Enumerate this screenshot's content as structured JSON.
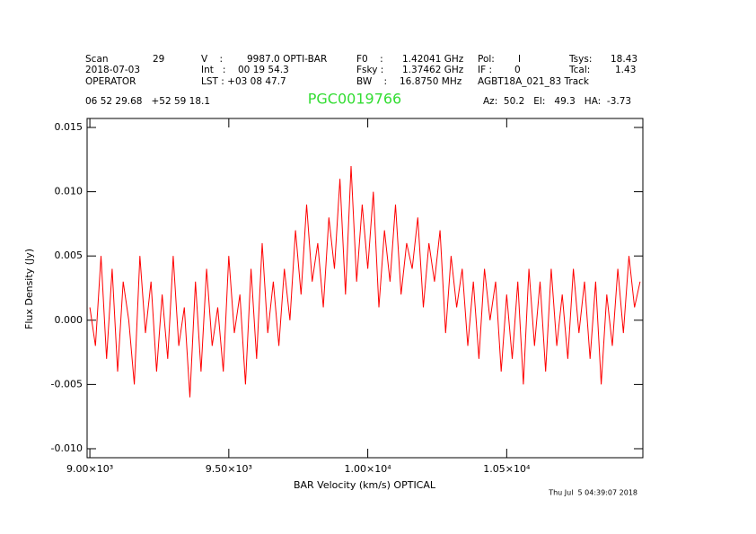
{
  "chart_data": {
    "type": "line",
    "title": "PGC0019766",
    "header": [
      "Scan",
      "29",
      "V    :",
      "9987.0 OPTI-BAR",
      "F0    :",
      "1.42041 GHz",
      "Pol:",
      "I",
      "Tsys:",
      "18.43",
      "2018-07-03",
      "Int   :",
      "00 19 54.3",
      "Fsky :",
      "1.37462 GHz",
      "IF :",
      "0",
      "Tcal:",
      "1.43",
      "OPERATOR",
      "LST : +03 08 47.7",
      "BW    :",
      "16.8750 MHz",
      "AGBT18A_021_83 Track",
      "06 52 29.68   +52 59 18.1",
      "Az:  50.2   El:   49.3   HA:  -3.73"
    ],
    "footer": "Thu Jul  5 04:39:07 2018",
    "x_label": "BAR Velocity (km/s) OPTICAL",
    "y_label": "Flux Density (Jy)",
    "xlim": [
      8990,
      10990
    ],
    "ylim": [
      -0.0107,
      0.0157
    ],
    "xticks": [
      {
        "value": 9000,
        "label": "9.00×10³"
      },
      {
        "value": 9500,
        "label": "9.50×10³"
      },
      {
        "value": 10000,
        "label": "1.00×10⁴"
      },
      {
        "value": 10500,
        "label": "1.05×10⁴"
      }
    ],
    "yticks": [
      {
        "value": 0.015,
        "label": "0.015"
      },
      {
        "value": 0.01,
        "label": "0.010"
      },
      {
        "value": 0.005,
        "label": "0.005"
      },
      {
        "value": 0,
        "label": "0.000"
      },
      {
        "value": -0.005,
        "label": "-0.005"
      },
      {
        "value": -0.01,
        "label": "-0.010"
      }
    ],
    "x": [
      9000,
      9020,
      9040,
      9060,
      9080,
      9100,
      9120,
      9140,
      9160,
      9180,
      9200,
      9220,
      9240,
      9260,
      9280,
      9300,
      9320,
      9340,
      9360,
      9380,
      9400,
      9420,
      9440,
      9460,
      9480,
      9500,
      9520,
      9540,
      9560,
      9580,
      9600,
      9620,
      9640,
      9660,
      9680,
      9700,
      9720,
      9740,
      9760,
      9780,
      9800,
      9820,
      9840,
      9860,
      9880,
      9900,
      9920,
      9940,
      9960,
      9980,
      10000,
      10020,
      10040,
      10060,
      10080,
      10100,
      10120,
      10140,
      10160,
      10180,
      10200,
      10220,
      10240,
      10260,
      10280,
      10300,
      10320,
      10340,
      10360,
      10380,
      10400,
      10420,
      10440,
      10460,
      10480,
      10500,
      10520,
      10540,
      10560,
      10580,
      10600,
      10620,
      10640,
      10660,
      10680,
      10700,
      10720,
      10740,
      10760,
      10780,
      10800,
      10820,
      10840,
      10860,
      10880,
      10900,
      10920,
      10940,
      10960,
      10980
    ],
    "series": [
      {
        "color": "#ff0000",
        "values": [
          0.001,
          -0.002,
          0.005,
          -0.003,
          0.004,
          -0.004,
          0.003,
          0.0,
          -0.005,
          0.005,
          -0.001,
          0.003,
          -0.004,
          0.002,
          -0.003,
          0.005,
          -0.002,
          0.001,
          -0.006,
          0.003,
          -0.004,
          0.004,
          -0.002,
          0.001,
          -0.004,
          0.005,
          -0.001,
          0.002,
          -0.005,
          0.004,
          -0.003,
          0.006,
          -0.001,
          0.003,
          -0.002,
          0.004,
          0.0,
          0.007,
          0.002,
          0.009,
          0.003,
          0.006,
          0.001,
          0.008,
          0.004,
          0.011,
          0.002,
          0.012,
          0.003,
          0.009,
          0.004,
          0.01,
          0.001,
          0.007,
          0.003,
          0.009,
          0.002,
          0.006,
          0.004,
          0.008,
          0.001,
          0.006,
          0.003,
          0.007,
          -0.001,
          0.005,
          0.001,
          0.004,
          -0.002,
          0.003,
          -0.003,
          0.004,
          0.0,
          0.003,
          -0.004,
          0.002,
          -0.003,
          0.003,
          -0.005,
          0.004,
          -0.002,
          0.003,
          -0.004,
          0.004,
          -0.002,
          0.002,
          -0.003,
          0.004,
          -0.001,
          0.003,
          -0.003,
          0.003,
          -0.005,
          0.002,
          -0.002,
          0.004,
          -0.001,
          0.005,
          0.001,
          0.003
        ]
      }
    ]
  }
}
